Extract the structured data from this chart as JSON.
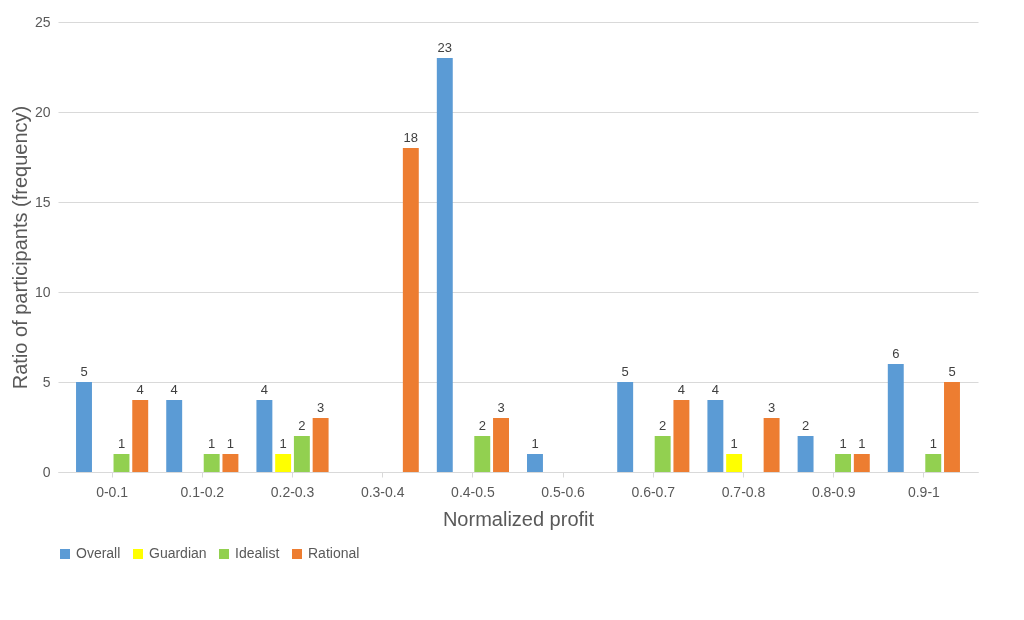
{
  "chart_data": {
    "type": "bar",
    "xlabel": "Normalized profit",
    "ylabel": "Ratio of participants (frequency)",
    "categories": [
      "0-0.1",
      "0.1-0.2",
      "0.2-0.3",
      "0.3-0.4",
      "0.4-0.5",
      "0.5-0.6",
      "0.6-0.7",
      "0.7-0.8",
      "0.8-0.9",
      "0.9-1"
    ],
    "series": [
      {
        "name": "Overall",
        "color": "#5b9bd5",
        "values": [
          5,
          4,
          4,
          null,
          23,
          1,
          5,
          4,
          2,
          6
        ]
      },
      {
        "name": "Guardian",
        "color": "#ffff00",
        "values": [
          null,
          null,
          1,
          null,
          null,
          null,
          null,
          1,
          null,
          null
        ]
      },
      {
        "name": "Idealist",
        "color": "#92d050",
        "values": [
          1,
          1,
          2,
          null,
          2,
          null,
          2,
          null,
          1,
          1
        ]
      },
      {
        "name": "Rational",
        "color": "#ed7d31",
        "values": [
          4,
          1,
          3,
          18,
          3,
          null,
          4,
          3,
          1,
          5
        ]
      }
    ],
    "ylim": [
      0,
      25
    ],
    "yticks": [
      0,
      5,
      10,
      15,
      20,
      25
    ],
    "grid": "y",
    "legend": "bottom",
    "data_labels": true
  }
}
